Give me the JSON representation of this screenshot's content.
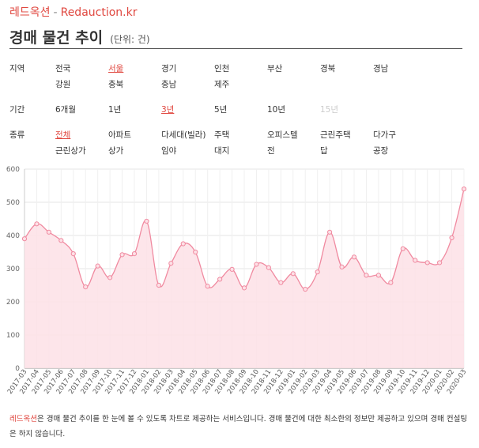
{
  "header": {
    "brand": "레드옥션",
    "separator": "-",
    "site": "Redauction.kr",
    "title": "경매 물건 추이",
    "unit": "(단위: 건)"
  },
  "filters": {
    "region": {
      "label": "지역",
      "options": [
        "전국",
        "서울",
        "경기",
        "인천",
        "부산",
        "경북",
        "경남",
        "강원",
        "충북",
        "충남",
        "제주"
      ],
      "selected": "서울"
    },
    "period": {
      "label": "기간",
      "options": [
        "6개월",
        "1년",
        "3년",
        "5년",
        "10년",
        "15년"
      ],
      "selected": "3년",
      "disabled": [
        "15년"
      ]
    },
    "type": {
      "label": "종류",
      "options": [
        "전체",
        "아파트",
        "다세대(빌라)",
        "주택",
        "오피스텔",
        "근린주택",
        "다가구",
        "근린상가",
        "상가",
        "임야",
        "대지",
        "전",
        "답",
        "공장"
      ],
      "selected": "전체"
    }
  },
  "chart_data": {
    "type": "area",
    "categories": [
      "2017-03",
      "2017-04",
      "2017-05",
      "2017-06",
      "2017-07",
      "2017-08",
      "2017-09",
      "2017-10",
      "2017-11",
      "2017-12",
      "2018-01",
      "2018-02",
      "2018-03",
      "2018-04",
      "2018-05",
      "2018-06",
      "2018-07",
      "2018-08",
      "2018-09",
      "2018-10",
      "2018-11",
      "2018-12",
      "2019-01",
      "2019-02",
      "2019-03",
      "2019-04",
      "2019-05",
      "2019-06",
      "2019-07",
      "2019-08",
      "2019-09",
      "2019-10",
      "2019-11",
      "2019-12",
      "2020-01",
      "2020-02",
      "2020-03"
    ],
    "values": [
      390,
      435,
      410,
      385,
      345,
      245,
      308,
      273,
      342,
      345,
      443,
      250,
      316,
      375,
      350,
      247,
      268,
      298,
      242,
      313,
      303,
      258,
      285,
      238,
      290,
      410,
      305,
      335,
      280,
      280,
      258,
      360,
      325,
      318,
      318,
      393,
      540
    ],
    "ylim": [
      0,
      600
    ],
    "yticks": [
      0,
      100,
      200,
      300,
      400,
      500,
      600
    ],
    "grid": true,
    "line_color": "#f08aa0",
    "fill_color": "#fde0e6"
  },
  "footer": {
    "highlight": "레드옥션",
    "text": "은 경매 물건 추이를 한 눈에 볼 수 있도록 차트로 제공하는 서비스입니다. 경매 물건에 대한 최소한의 정보만 제공하고 있으며 경매 컨설팅은 하지 않습니다."
  }
}
